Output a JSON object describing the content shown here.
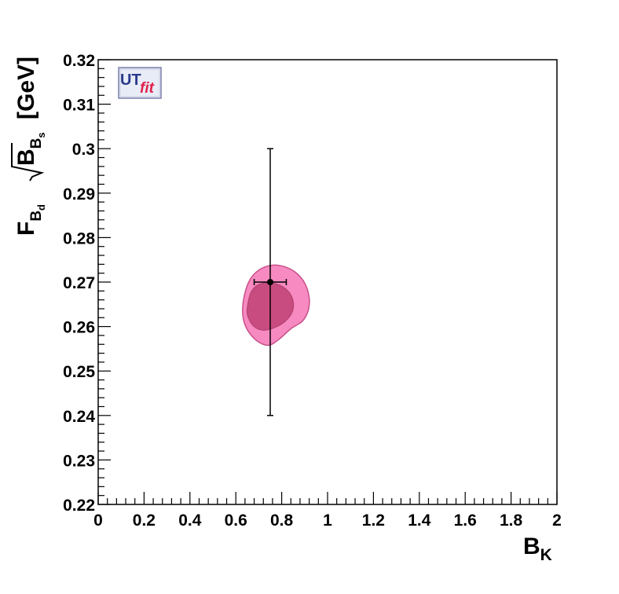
{
  "chart_data": {
    "type": "scatter",
    "title": "",
    "xlabel": {
      "main": "B",
      "sub": "K"
    },
    "ylabel": {
      "f": "F",
      "f_sub": "B",
      "f_subsub": "d",
      "root": "B",
      "root_sub": "B",
      "root_subsub": "s",
      "unit": "[GeV]"
    },
    "xlim": [
      0,
      2
    ],
    "ylim": [
      0.22,
      0.32
    ],
    "x_ticks": [
      "0",
      "0.2",
      "0.4",
      "0.6",
      "0.8",
      "1",
      "1.2",
      "1.4",
      "1.6",
      "1.8",
      "2"
    ],
    "y_ticks": [
      "0.22",
      "0.23",
      "0.24",
      "0.25",
      "0.26",
      "0.27",
      "0.28",
      "0.29",
      "0.3",
      "0.31",
      "0.32"
    ],
    "logo": {
      "ut": "UT",
      "fit": "fit"
    },
    "measurement": {
      "x": 0.75,
      "y": 0.27,
      "x_err": 0.07,
      "y_err": 0.03
    },
    "regions": [
      {
        "level": "outer",
        "color": "#f78ac0",
        "stroke": "#c8508a",
        "points": [
          [
            0.63,
            0.2645
          ],
          [
            0.645,
            0.2685
          ],
          [
            0.67,
            0.2712
          ],
          [
            0.71,
            0.273
          ],
          [
            0.76,
            0.2738
          ],
          [
            0.81,
            0.2735
          ],
          [
            0.86,
            0.2722
          ],
          [
            0.9,
            0.2698
          ],
          [
            0.92,
            0.2665
          ],
          [
            0.915,
            0.2635
          ],
          [
            0.89,
            0.2612
          ],
          [
            0.84,
            0.2595
          ],
          [
            0.79,
            0.2572
          ],
          [
            0.745,
            0.2558
          ],
          [
            0.7,
            0.2565
          ],
          [
            0.66,
            0.2585
          ],
          [
            0.635,
            0.2612
          ]
        ]
      },
      {
        "level": "inner",
        "color": "#c84c80",
        "stroke": "#b84575",
        "points": [
          [
            0.65,
            0.264
          ],
          [
            0.665,
            0.2675
          ],
          [
            0.695,
            0.2693
          ],
          [
            0.74,
            0.2698
          ],
          [
            0.79,
            0.2693
          ],
          [
            0.83,
            0.2678
          ],
          [
            0.85,
            0.2655
          ],
          [
            0.845,
            0.2632
          ],
          [
            0.815,
            0.2612
          ],
          [
            0.77,
            0.2598
          ],
          [
            0.72,
            0.2592
          ],
          [
            0.68,
            0.26
          ],
          [
            0.655,
            0.262
          ]
        ]
      }
    ]
  }
}
